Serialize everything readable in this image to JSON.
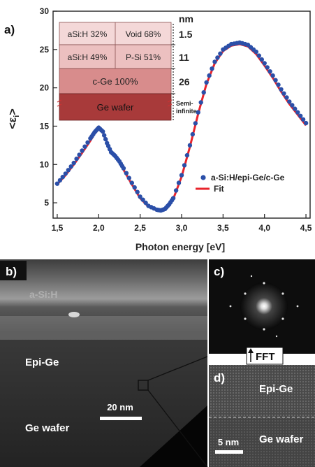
{
  "chart_data": {
    "type": "scatter",
    "xlabel": "Photon energy [eV]",
    "ylabel": "<ε",
    "ylabel_sub": "i",
    "ylabel_close": ">",
    "xlim": [
      1.45,
      4.55
    ],
    "ylim": [
      3,
      30
    ],
    "xticks": [
      1.5,
      2.0,
      2.5,
      3.0,
      3.5,
      4.0,
      4.5
    ],
    "xtick_labels": [
      "1,5",
      "2,0",
      "2,5",
      "3,0",
      "3,5",
      "4,0",
      "4,5"
    ],
    "yticks": [
      5,
      10,
      15,
      20,
      25,
      30
    ],
    "ytick_labels": [
      "5",
      "10",
      "15",
      "20",
      "25",
      "30"
    ],
    "grid": false,
    "legend_position": "bottom-right",
    "series": [
      {
        "name": "a-Si:H/epi-Ge/c-Ge",
        "style": "markers",
        "color": "#2b4fa8",
        "x": [
          1.5,
          1.6,
          1.7,
          1.8,
          1.9,
          1.95,
          2.0,
          2.05,
          2.1,
          2.15,
          2.2,
          2.25,
          2.3,
          2.4,
          2.5,
          2.6,
          2.7,
          2.75,
          2.8,
          2.85,
          2.9,
          3.0,
          3.1,
          3.2,
          3.3,
          3.4,
          3.5,
          3.6,
          3.7,
          3.8,
          3.9,
          4.0,
          4.1,
          4.2,
          4.3,
          4.4,
          4.5
        ],
        "y": [
          7.5,
          8.8,
          10.2,
          11.8,
          13.4,
          14.2,
          14.8,
          14.3,
          12.8,
          11.6,
          11.1,
          10.4,
          9.5,
          7.6,
          5.8,
          4.6,
          4.1,
          4.0,
          4.2,
          4.8,
          5.6,
          8.6,
          12.5,
          16.8,
          20.7,
          23.4,
          25.0,
          25.7,
          25.9,
          25.6,
          24.7,
          23.2,
          21.6,
          19.8,
          18.2,
          16.8,
          15.4
        ]
      },
      {
        "name": "Fit",
        "style": "line",
        "color": "#e8242c",
        "x": [
          1.5,
          1.6,
          1.7,
          1.8,
          1.9,
          1.95,
          2.0,
          2.05,
          2.1,
          2.15,
          2.2,
          2.25,
          2.3,
          2.4,
          2.5,
          2.6,
          2.7,
          2.75,
          2.8,
          2.85,
          2.9,
          3.0,
          3.1,
          3.2,
          3.3,
          3.4,
          3.5,
          3.6,
          3.7,
          3.8,
          3.9,
          4.0,
          4.1,
          4.2,
          4.3,
          4.4,
          4.5
        ],
        "y": [
          7.4,
          8.6,
          10.0,
          11.5,
          13.1,
          14.0,
          14.6,
          14.2,
          12.9,
          11.7,
          11.0,
          10.3,
          9.3,
          7.4,
          5.6,
          4.5,
          4.0,
          3.9,
          4.1,
          4.7,
          5.5,
          8.4,
          12.3,
          16.6,
          20.5,
          23.2,
          24.8,
          25.5,
          25.7,
          25.4,
          24.4,
          22.9,
          21.3,
          19.5,
          17.9,
          16.5,
          15.1
        ]
      }
    ]
  },
  "panels": {
    "a_tag": "a)",
    "b_tag": "b)",
    "c_tag": "c)",
    "d_tag": "d)"
  },
  "layer_stack": {
    "unit": "nm",
    "rows": [
      {
        "left": "aSi:H 32%",
        "right": "Void 68%",
        "thickness": "1.5",
        "color": "#f4d8d8"
      },
      {
        "left": "aSi:H 49%",
        "right": "P-Si 51%",
        "thickness": "11",
        "color": "#ecc0c0"
      },
      {
        "label": "c-Ge 100%",
        "thickness": "26",
        "color": "#d88c8c"
      },
      {
        "label": "Ge wafer",
        "thickness_line1": "Semi-",
        "thickness_line2": "infinite",
        "color": "#a83a3a"
      }
    ]
  },
  "tem_image": {
    "label_top": "a-Si:H",
    "label_mid": "Epi-Ge",
    "label_bottom": "Ge wafer",
    "scale_bar": "20 nm"
  },
  "fft_image": {
    "label": "FFT"
  },
  "hrtem_image": {
    "label_top": "Epi-Ge",
    "label_bottom": "Ge wafer",
    "scale_bar": "5 nm"
  },
  "colors": {
    "axis": "#222222",
    "data_blue": "#2b4fa8",
    "fit_red": "#e8242c"
  }
}
